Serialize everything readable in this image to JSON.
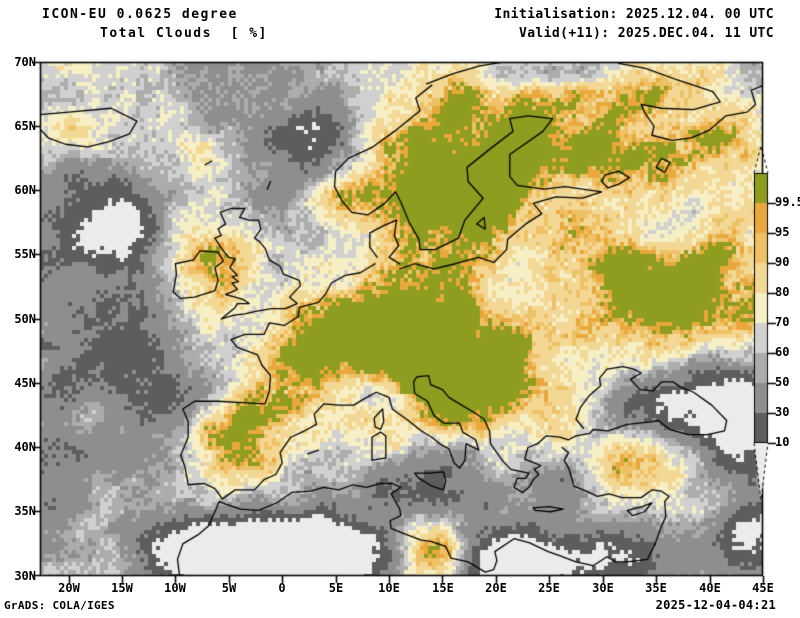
{
  "header": {
    "model_title": "ICON-EU 0.0625 degree",
    "variable_title": "Total Clouds  [ %]",
    "initialisation": "Initialisation: 2025.12.04. 00 UTC",
    "valid": "Valid(+11): 2025.DEC.04. 11 UTC"
  },
  "map": {
    "lat_labels": [
      "70N",
      "65N",
      "60N",
      "55N",
      "50N",
      "45N",
      "40N",
      "35N",
      "30N"
    ],
    "lon_labels": [
      "20W",
      "15W",
      "10W",
      "5W",
      "0",
      "5E",
      "10E",
      "15E",
      "20E",
      "25E",
      "30E",
      "35E",
      "40E",
      "45E"
    ]
  },
  "colorbar": {
    "labels": [
      "99.5",
      "95",
      "90",
      "80",
      "70",
      "60",
      "50",
      "30",
      "10"
    ],
    "levels_percent": [
      99.5,
      95,
      90,
      80,
      70,
      60,
      50,
      30,
      10
    ],
    "colors_high_to_low": [
      "#8e9d1f",
      "#e9a83c",
      "#eec167",
      "#f2d795",
      "#f6efc5",
      "#d0d0d0",
      "#acacac",
      "#8e8e8e",
      "#5d5d5d",
      "#ebebeb"
    ],
    "coastline_color": "#000000"
  },
  "footer": {
    "credit": "GrADS: COLA/IGES",
    "timestamp": "2025-12-04-04:21"
  },
  "chart_data": {
    "type": "heatmap",
    "title": "Total Clouds  [ %]",
    "model": "ICON-EU 0.0625 degree",
    "init_time": "2025.12.04. 00 UTC",
    "valid_time": "2025.DEC.04. 11 UTC",
    "forecast_offset": "+11",
    "units": "%",
    "lon_axis": [
      "20W",
      "15W",
      "10W",
      "5W",
      "0",
      "5E",
      "10E",
      "15E",
      "20E",
      "25E",
      "30E",
      "35E",
      "40E",
      "45E"
    ],
    "lat_axis": [
      "70N",
      "65N",
      "60N",
      "55N",
      "50N",
      "45N",
      "40N",
      "35N",
      "30N"
    ],
    "color_levels_percent": [
      10,
      30,
      50,
      60,
      70,
      80,
      90,
      95,
      99.5
    ],
    "legend_position": "right"
  }
}
